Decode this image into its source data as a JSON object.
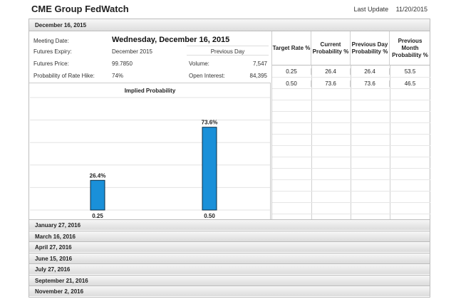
{
  "header": {
    "title": "CME Group FedWatch",
    "last_update_label": "Last Update",
    "last_update_value": "11/20/2015"
  },
  "active_meeting": {
    "label": "December 16, 2015",
    "meeting_date_label": "Meeting Date:",
    "meeting_date_value": "Wednesday, December 16, 2015",
    "futures_expiry_label": "Futures Expiry:",
    "futures_expiry_value": "December 2015",
    "futures_price_label": "Futures Price:",
    "futures_price_value": "99.7850",
    "prob_hike_label": "Probability of Rate Hike:",
    "prob_hike_value": "74%",
    "previous_day_label": "Previous Day",
    "volume_label": "Volume:",
    "volume_value": "7,547",
    "open_interest_label": "Open Interest:",
    "open_interest_value": "84,395"
  },
  "table": {
    "headers": [
      "Target Rate %",
      "Current Probability %",
      "Previous Day Probability %",
      "Previous Month Probability %"
    ],
    "rows": [
      [
        "0.25",
        "26.4",
        "26.4",
        "53.5"
      ],
      [
        "0.50",
        "73.6",
        "73.6",
        "46.5"
      ]
    ]
  },
  "chart_data": {
    "type": "bar",
    "title": "Implied Probability",
    "categories": [
      "0.25",
      "0.50"
    ],
    "values": [
      26.4,
      73.6
    ],
    "value_labels": [
      "26.4%",
      "73.6%"
    ],
    "ylim": [
      0,
      100
    ],
    "grid": true,
    "bar_color": "#1a90d9"
  },
  "other_meetings": [
    "January 27, 2016",
    "March 16, 2016",
    "April 27, 2016",
    "June 15, 2016",
    "July 27, 2016",
    "September 21, 2016",
    "November 2, 2016"
  ]
}
